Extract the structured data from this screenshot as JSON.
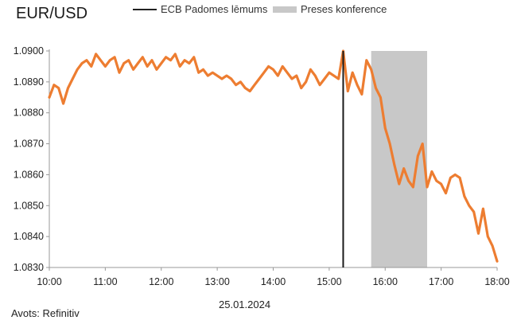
{
  "title": "EUR/USD",
  "legend": {
    "decision": "ECB Padomes lēmums",
    "press": "Preses konference"
  },
  "colors": {
    "line": "#ED7D31",
    "decision": "#1a1a1a",
    "press": "#C8C8C8",
    "axis": "#999999"
  },
  "source": "Avots: Refinitiv",
  "date": "25.01.2024",
  "chart_data": {
    "type": "line",
    "title": "EUR/USD",
    "xlabel": "25.01.2024",
    "ylabel": "",
    "x_ticks": [
      "10:00",
      "11:00",
      "12:00",
      "13:00",
      "14:00",
      "15:00",
      "16:00",
      "17:00",
      "18:00"
    ],
    "y_ticks": [
      "1.0830",
      "1.0840",
      "1.0850",
      "1.0860",
      "1.0870",
      "1.0880",
      "1.0890",
      "1.0900"
    ],
    "ylim": [
      1.083,
      1.09
    ],
    "xlim": [
      "10:00",
      "18:00"
    ],
    "grid": false,
    "legend_position": "top",
    "events": [
      {
        "name": "ECB Padomes lēmums",
        "kind": "line",
        "x": "15:15"
      },
      {
        "name": "Preses konference",
        "kind": "band",
        "x_start": "15:45",
        "x_end": "16:45"
      }
    ],
    "series": [
      {
        "x": [
          "10:00",
          "10:05",
          "10:10",
          "10:15",
          "10:20",
          "10:25",
          "10:30",
          "10:35",
          "10:40",
          "10:45",
          "10:50",
          "10:55",
          "11:00",
          "11:05",
          "11:10",
          "11:15",
          "11:20",
          "11:25",
          "11:30",
          "11:35",
          "11:40",
          "11:45",
          "11:50",
          "11:55",
          "12:00",
          "12:05",
          "12:10",
          "12:15",
          "12:20",
          "12:25",
          "12:30",
          "12:35",
          "12:40",
          "12:45",
          "12:50",
          "12:55",
          "13:00",
          "13:05",
          "13:10",
          "13:15",
          "13:20",
          "13:25",
          "13:30",
          "13:35",
          "13:40",
          "13:45",
          "13:50",
          "13:55",
          "14:00",
          "14:05",
          "14:10",
          "14:15",
          "14:20",
          "14:25",
          "14:30",
          "14:35",
          "14:40",
          "14:45",
          "14:50",
          "14:55",
          "15:00",
          "15:05",
          "15:10",
          "15:15",
          "15:20",
          "15:25",
          "15:30",
          "15:35",
          "15:40",
          "15:45",
          "15:50",
          "15:55",
          "16:00",
          "16:05",
          "16:10",
          "16:15",
          "16:20",
          "16:25",
          "16:30",
          "16:35",
          "16:40",
          "16:45",
          "16:50",
          "16:55",
          "17:00",
          "17:05",
          "17:10",
          "17:15",
          "17:20",
          "17:25",
          "17:30",
          "17:35",
          "17:40",
          "17:45",
          "17:50",
          "17:55",
          "18:00"
        ],
        "values": [
          1.0885,
          1.0889,
          1.0888,
          1.0883,
          1.0888,
          1.0891,
          1.0894,
          1.0896,
          1.0897,
          1.0895,
          1.0899,
          1.0897,
          1.0895,
          1.0897,
          1.0898,
          1.0893,
          1.0896,
          1.0897,
          1.0894,
          1.0896,
          1.0898,
          1.0895,
          1.0897,
          1.0894,
          1.0896,
          1.0898,
          1.0897,
          1.0899,
          1.0895,
          1.0897,
          1.0896,
          1.0898,
          1.0893,
          1.0894,
          1.0892,
          1.0893,
          1.0892,
          1.0891,
          1.0892,
          1.0891,
          1.0889,
          1.089,
          1.0888,
          1.0887,
          1.0889,
          1.0891,
          1.0893,
          1.0895,
          1.0894,
          1.0892,
          1.0895,
          1.0893,
          1.0891,
          1.0892,
          1.0888,
          1.089,
          1.0894,
          1.0892,
          1.0889,
          1.0891,
          1.0893,
          1.0892,
          1.0891,
          1.09,
          1.0887,
          1.0893,
          1.0889,
          1.0886,
          1.0897,
          1.0894,
          1.0888,
          1.0885,
          1.0875,
          1.087,
          1.0863,
          1.0857,
          1.0862,
          1.0858,
          1.0856,
          1.0866,
          1.087,
          1.0856,
          1.0861,
          1.0858,
          1.0857,
          1.0854,
          1.0859,
          1.086,
          1.0859,
          1.0853,
          1.085,
          1.0848,
          1.0841,
          1.0849,
          1.084,
          1.0837,
          1.0832
        ]
      }
    ]
  }
}
